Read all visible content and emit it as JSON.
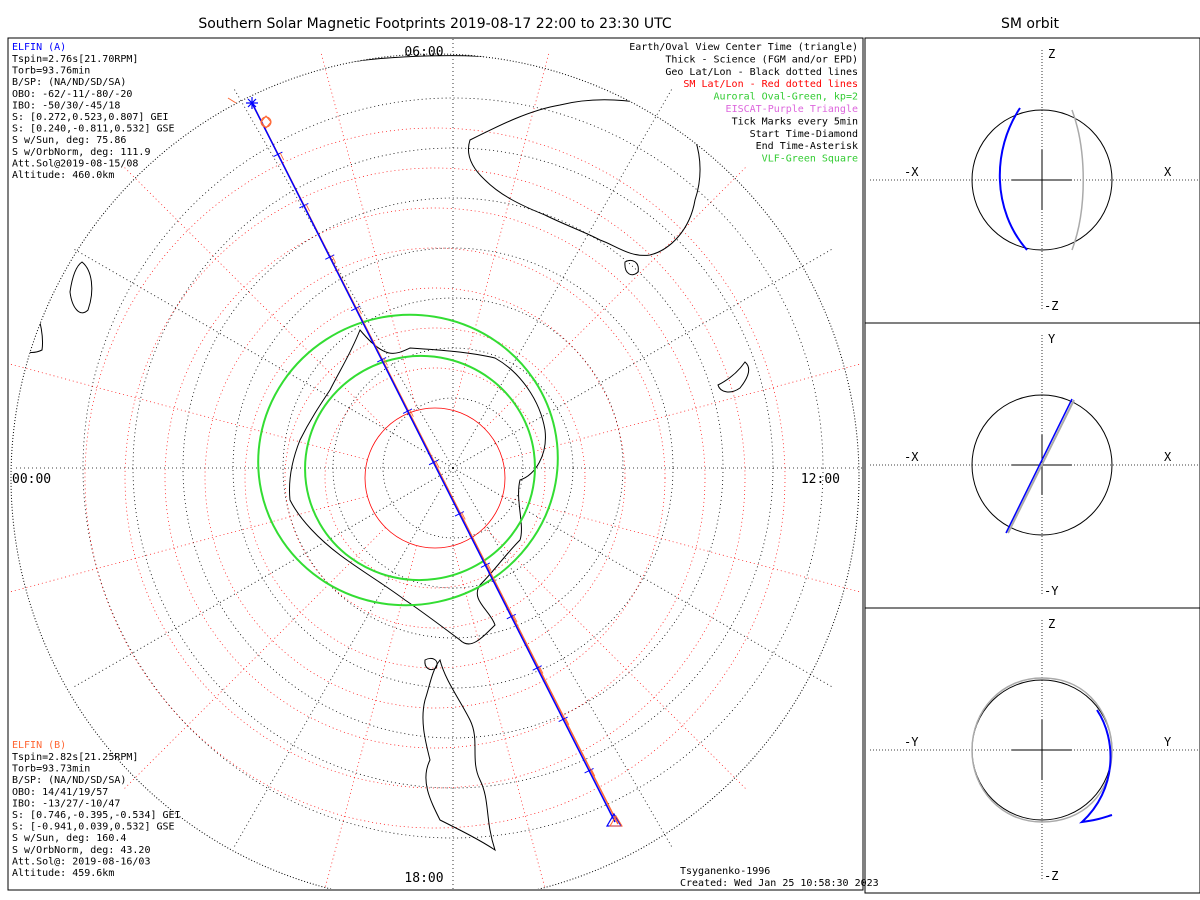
{
  "title": "Southern Solar Magnetic Footprints 2019-08-17 22:00 to 23:30 UTC",
  "orbit_title": "SM orbit",
  "time_labels": {
    "top": "06:00",
    "left": "00:00",
    "right": "12:00",
    "bottom": "18:00"
  },
  "elfin_a": {
    "header": "ELFIN (A)",
    "color": "#0000ff",
    "lines": [
      "Tspin=2.76s[21.70RPM]",
      "Torb=93.76min",
      "B/SP: (NA/ND/SD/SA)",
      "OBO: -62/-11/-80/-20",
      "IBO: -50/30/-45/18",
      "S: [0.272,0.523,0.807] GEI",
      "S: [0.240,-0.811,0.532] GSE",
      "S w/Sun, deg: 75.86",
      "S w/OrbNorm, deg: 111.9",
      "Att.Sol@2019-08-15/08",
      "Altitude: 460.0km"
    ]
  },
  "elfin_b": {
    "header": "ELFIN (B)",
    "color": "#ff6633",
    "lines": [
      "Tspin=2.82s[21.25RPM]",
      "Torb=93.73min",
      "B/SP: (NA/ND/SD/SA)",
      "OBO: 14/41/19/57",
      "IBO: -13/27/-10/47",
      "S: [0.746,-0.395,-0.534] GEI",
      "S: [-0.941,0.039,0.532] GSE",
      "S w/Sun, deg: 160.4",
      "S w/OrbNorm, deg: 43.20",
      "Att.Sol@: 2019-08-16/03",
      "Altitude: 459.6km"
    ]
  },
  "legend": [
    {
      "text": "Earth/Oval View Center Time (triangle)",
      "color": "#000000"
    },
    {
      "text": "Thick - Science (FGM and/or EPD)",
      "color": "#000000"
    },
    {
      "text": "Geo Lat/Lon - Black dotted lines",
      "color": "#000000"
    },
    {
      "text": "SM Lat/Lon - Red dotted lines",
      "color": "#ff0000"
    },
    {
      "text": "Auroral Oval-Green, kp=2",
      "color": "#33cc33"
    },
    {
      "text": "EISCAT-Purple Triangle",
      "color": "#dd66dd"
    },
    {
      "text": "Tick Marks every 5min",
      "color": "#000000"
    },
    {
      "text": "Start Time-Diamond",
      "color": "#000000"
    },
    {
      "text": "End Time-Asterisk",
      "color": "#000000"
    },
    {
      "text": "VLF-Green Square",
      "color": "#33cc33"
    }
  ],
  "footer": {
    "model": "Tsyganenko-1996",
    "created": "Created: Wed Jan 25 10:58:30 2023"
  },
  "orbit_panels": [
    {
      "top": "Z",
      "bottom": "-Z",
      "left": "-X",
      "right": "X"
    },
    {
      "top": "Y",
      "bottom": "-Y",
      "left": "-X",
      "right": "X"
    },
    {
      "top": "Z",
      "bottom": "-Z",
      "left": "-Y",
      "right": "Y"
    }
  ],
  "colors": {
    "elfin_a": "#0000ff",
    "elfin_b": "#ff6633",
    "oval": "#33dd33",
    "sm_grid": "#ff0000",
    "geo_grid": "#000000"
  }
}
